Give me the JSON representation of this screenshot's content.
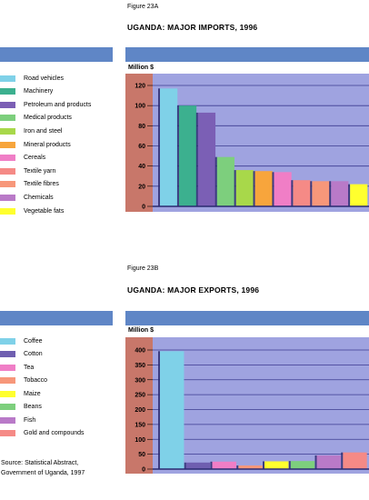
{
  "chart_data": [
    {
      "type": "bar",
      "figure_label": "Figure 23A",
      "title": "UGANDA: MAJOR IMPORTS, 1996",
      "ylabel": "Million $",
      "ylim": [
        0,
        120
      ],
      "yticks": [
        0,
        20,
        40,
        60,
        80,
        100,
        120
      ],
      "grid": true,
      "legend_position": "left",
      "categories": [
        "Road vehicles",
        "Machinery",
        "Petroleum and products",
        "Medical products",
        "Iron and steel",
        "Mineral products",
        "Cereals",
        "Textile yarn",
        "Textile fibres",
        "Chemicals",
        "Vegetable fats"
      ],
      "values": [
        117,
        100,
        93,
        49,
        36,
        35,
        34,
        26,
        25,
        25,
        22
      ],
      "colors": [
        "#7fd1e8",
        "#3cb08f",
        "#7b5fb5",
        "#7dcf7d",
        "#a8d84a",
        "#f7a53c",
        "#f07ec6",
        "#f58a86",
        "#f7977a",
        "#b97ac8",
        "#ffff2e"
      ]
    },
    {
      "type": "bar",
      "figure_label": "Figure 23B",
      "title": "UGANDA: MAJOR EXPORTS, 1996",
      "ylabel": "Million $",
      "ylim": [
        0,
        400
      ],
      "yticks": [
        0,
        50,
        100,
        150,
        200,
        250,
        300,
        350,
        400
      ],
      "grid": true,
      "legend_position": "left",
      "categories": [
        "Coffee",
        "Cotton",
        "Tea",
        "Tobacco",
        "Maize",
        "Beans",
        "Fish",
        "Gold and compounds"
      ],
      "values": [
        396,
        22,
        25,
        12,
        26,
        27,
        46,
        56
      ],
      "colors": [
        "#7fd1e8",
        "#6f5fb0",
        "#f07ec6",
        "#f7977a",
        "#ffff2e",
        "#7dcf7d",
        "#b97ac8",
        "#f58a86"
      ]
    }
  ],
  "source_text_line1": "Source: Statistical Abstract,",
  "source_text_line2": "Government of Uganda, 1997"
}
